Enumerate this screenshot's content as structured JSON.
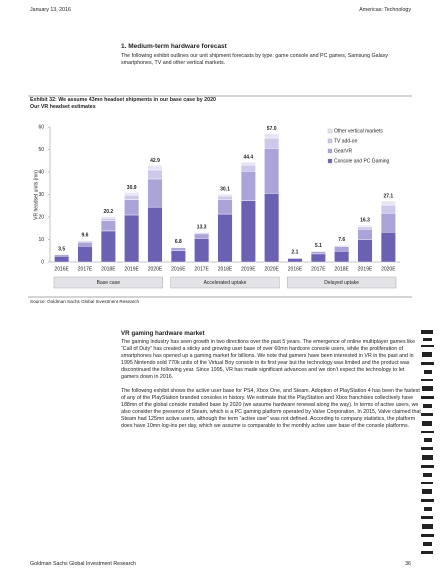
{
  "header": {
    "date": "January 13, 2016",
    "section": "Americas: Technology"
  },
  "intro": {
    "title": "1. Medium-term hardware forecast",
    "text": "The following exhibit outlines our unit shipment forecasts by type: game console and PC games, Samsung Galaxy smartphones, TV and other vertical markets."
  },
  "exhibit": {
    "title": "Exhibit 32: We assume 43mn headset shipments in our base case by 2020",
    "subtitle": "Our VR headset estimates",
    "source": "Source: Goldman Sachs Global Investment Research"
  },
  "chart_data": {
    "type": "stacked-bar",
    "ylabel": "VR headset units (mn)",
    "categories": [
      "2016E",
      "2017E",
      "2018E",
      "2019E",
      "2020E",
      "2016E",
      "2017E",
      "2018E",
      "2019E",
      "2020E",
      "2016E",
      "2017E",
      "2018E",
      "2019E",
      "2020E"
    ],
    "group_labels": [
      "Base case",
      "Accelerated uptake",
      "Delayed uptake"
    ],
    "series": [
      {
        "name": "Console and PC Gaming",
        "color": "#6b61b2",
        "values": [
          2.6,
          7.0,
          13.8,
          20.9,
          24.4,
          5.0,
          10.5,
          21.3,
          27.3,
          30.5,
          1.5,
          3.6,
          4.8,
          10.0,
          13.2
        ]
      },
      {
        "name": "GearVR",
        "color": "#aaa4d8",
        "values": [
          0.7,
          1.8,
          4.5,
          6.8,
          12.5,
          1.3,
          2.0,
          6.5,
          13.0,
          20.0,
          0.4,
          1.0,
          2.0,
          4.5,
          8.5
        ]
      },
      {
        "name": "TV add-on",
        "color": "#cdc9ea",
        "values": [
          0.1,
          0.5,
          1.2,
          2.0,
          4.0,
          0.3,
          0.5,
          1.5,
          2.7,
          4.5,
          0.1,
          0.3,
          0.5,
          1.1,
          3.6
        ]
      },
      {
        "name": "Other vertical markets",
        "color": "#e7e5f5",
        "values": [
          0.1,
          0.3,
          0.7,
          1.2,
          2.0,
          0.2,
          0.3,
          0.8,
          1.4,
          2.0,
          0.1,
          0.2,
          0.3,
          0.7,
          1.8
        ]
      }
    ],
    "totals": [
      3.5,
      9.6,
      20.2,
      30.9,
      42.9,
      6.8,
      13.3,
      30.1,
      44.4,
      57.0,
      2.1,
      5.1,
      7.6,
      16.3,
      27.1
    ],
    "total_labels": [
      "3.5",
      "9.6",
      "20.2",
      "30.9",
      "42.9",
      "6.8",
      "13.3",
      "30.1",
      "44.4",
      "57.0",
      "2.1",
      "5.1",
      "7.6",
      "16.3",
      "27.1"
    ],
    "ylim": [
      0,
      60
    ],
    "yticks": [
      0,
      10,
      20,
      30,
      40,
      50,
      60
    ],
    "grid": false,
    "legend": "top-right"
  },
  "body": {
    "title": "VR gaming hardware market",
    "paragraphs": [
      "The gaming industry has seen growth in two directions over the past 5 years. The emergence of online multiplayer games like “Call of Duty” has created a sticky and growing user base of over 60mn hardcore console users, while the proliferation of smartphones has opened up a gaming market for billions. We note that gamers have been interested in VR in the past and in 1995 Nintendo sold 770k units of the Virtual Boy console in its first year but the technology was limited and the product was discontinued the following year. Since 1995, VR has made significant advances and we don’t expect the technology to let gamers down in 2016.",
      "The following exhibit shows the active user base for PS4, Xbox One, and Steam. Adoption of PlayStation 4 has been the fastest of any of the PlayStation branded consoles in history. We estimate that the PlayStation and Xbox franchises collectively have 188mn of the global console installed base by 2020 (we assume hardware renewal along the way). In terms of active users, we also consider the presence of Steam, which is a PC gaming platform operated by Valve Corporation. In 2015, Valve claimed that Steam had 125mn active users, although the term “active user” was not defined. According to company statistics, the platform does have 10mn log-ins per day, which we assume is comparable to the monthly active user base of the console platforms."
    ]
  },
  "footer": {
    "publisher": "Goldman Sachs Global Investment Research",
    "page": "36"
  }
}
